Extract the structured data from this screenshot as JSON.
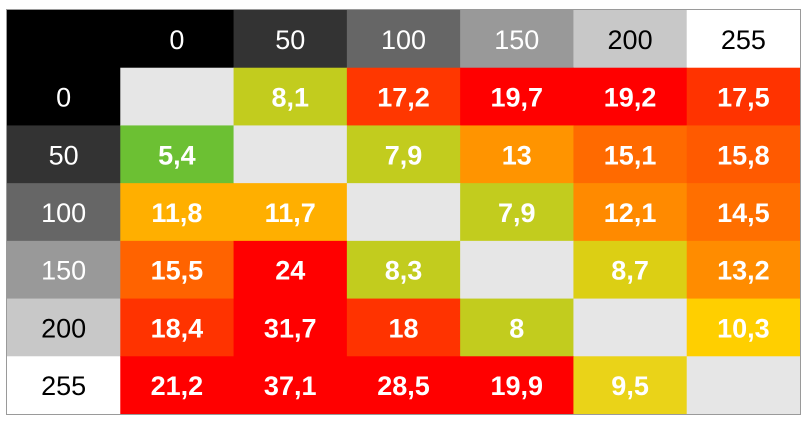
{
  "chart_data": {
    "type": "heatmap",
    "x_categories": [
      "0",
      "50",
      "100",
      "150",
      "200",
      "255"
    ],
    "y_categories": [
      "0",
      "50",
      "100",
      "150",
      "200",
      "255"
    ],
    "values": [
      [
        null,
        "8,1",
        "17,2",
        "19,7",
        "19,2",
        "17,5"
      ],
      [
        "5,4",
        null,
        "7,9",
        "13",
        "15,1",
        "15,8"
      ],
      [
        "11,8",
        "11,7",
        null,
        "7,9",
        "12,1",
        "14,5"
      ],
      [
        "15,5",
        "24",
        "8,3",
        null,
        "8,7",
        "13,2"
      ],
      [
        "18,4",
        "31,7",
        "18",
        "8",
        null,
        "10,3"
      ],
      [
        "21,2",
        "37,1",
        "28,5",
        "19,9",
        "9,5",
        null
      ]
    ],
    "header_backgrounds": [
      "#000000",
      "#333333",
      "#666666",
      "#999999",
      "#c8c8c8",
      "#ffffff"
    ],
    "header_text_colors": [
      "#ffffff",
      "#ffffff",
      "#ffffff",
      "#ffffff",
      "#000000",
      "#000000"
    ],
    "cell_colors": [
      [
        "#e6e6e6",
        "#c2cc1e",
        "#ff3700",
        "#ff0000",
        "#ff0000",
        "#ff3300"
      ],
      [
        "#6cc033",
        "#e6e6e6",
        "#c2cc1e",
        "#ff9400",
        "#ff6a00",
        "#ff5a00"
      ],
      [
        "#ffaf00",
        "#ffaf00",
        "#e6e6e6",
        "#c2cc1e",
        "#ff8a00",
        "#ff6f00"
      ],
      [
        "#ff6300",
        "#ff0000",
        "#c2cc1e",
        "#e6e6e6",
        "#dccf14",
        "#ff8c00"
      ],
      [
        "#ff3300",
        "#ff0000",
        "#ff3300",
        "#c2cc1e",
        "#e6e6e6",
        "#ffcf00"
      ],
      [
        "#ff0000",
        "#ff0000",
        "#ff0000",
        "#ff0000",
        "#ead318",
        "#e6e6e6"
      ]
    ],
    "corner_color": "#000000",
    "value_text_color": "#ffffff"
  }
}
